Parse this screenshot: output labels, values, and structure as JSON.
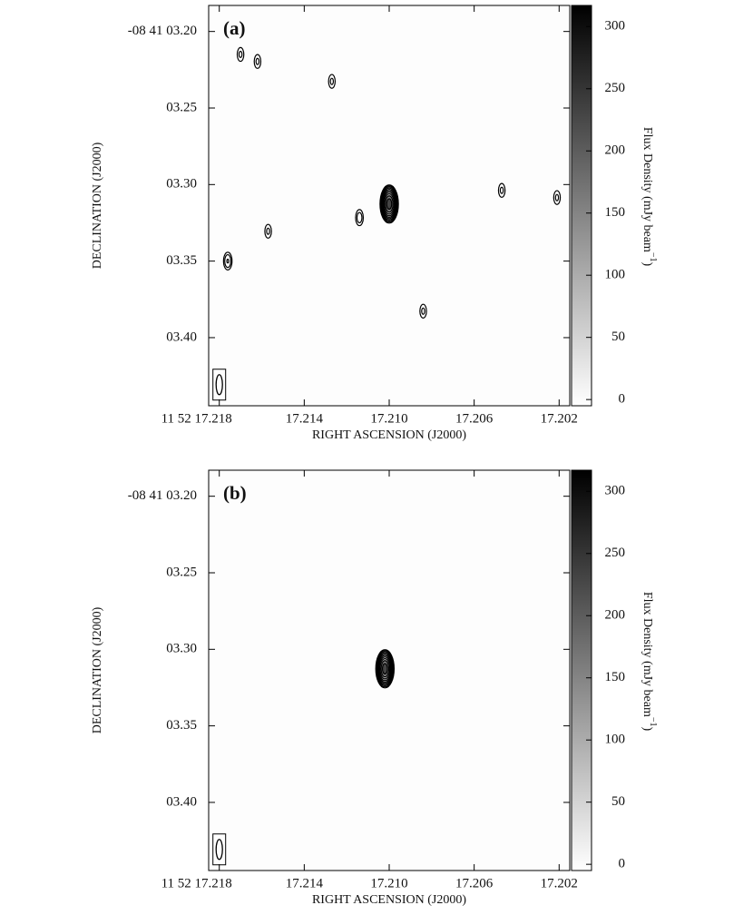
{
  "chart_data": [
    {
      "type": "contour",
      "panel_label": "(a)",
      "xlabel": "RIGHT ASCENSION (J2000)",
      "ylabel": "DECLINATION (J2000)",
      "xlim": [
        17.2185,
        17.2015
      ],
      "ylim": [
        3.183,
        3.4445
      ],
      "xticks": [
        {
          "value": 17.218,
          "label": "11 52 17.218"
        },
        17.214,
        {
          "value": 17.21,
          "label": "17.210"
        },
        17.206,
        17.202
      ],
      "yticks": [
        {
          "value": 3.2,
          "label": "-08 41 03.20"
        },
        {
          "value": 3.25,
          "label": "03.25"
        },
        {
          "value": 3.3,
          "label": "03.30"
        },
        {
          "value": 3.35,
          "label": "03.35"
        },
        {
          "value": 3.4,
          "label": "03.40"
        }
      ],
      "colorbar": {
        "label": "Flux Density (mJy beam",
        "label_exp": "−1",
        "label_end": ")",
        "clim": [
          -5,
          317
        ],
        "ticks": [
          0,
          50,
          100,
          150,
          200,
          250,
          300
        ]
      },
      "sources": [
        {
          "x": 17.21,
          "y": 3.3127,
          "peak": 310
        },
        {
          "x": 17.217,
          "y": 3.215,
          "peak": 10
        },
        {
          "x": 17.2162,
          "y": 3.2196,
          "peak": 10
        },
        {
          "x": 17.2127,
          "y": 3.2326,
          "peak": 10
        },
        {
          "x": 17.2114,
          "y": 3.3216,
          "peak": 12
        },
        {
          "x": 17.2157,
          "y": 3.3305,
          "peak": 10
        },
        {
          "x": 17.2176,
          "y": 3.35,
          "peak": 14
        },
        {
          "x": 17.2084,
          "y": 3.3827,
          "peak": 10
        },
        {
          "x": 17.2047,
          "y": 3.3038,
          "peak": 10
        },
        {
          "x": 17.2021,
          "y": 3.3085,
          "peak": 10
        }
      ],
      "beam": {
        "x": 17.218,
        "y": 3.4307
      }
    },
    {
      "type": "contour",
      "panel_label": "(b)",
      "xlabel": "RIGHT ASCENSION (J2000)",
      "ylabel": "DECLINATION (J2000)",
      "xlim": [
        17.2185,
        17.2015
      ],
      "ylim": [
        3.183,
        3.4445
      ],
      "xticks": [
        {
          "value": 17.218,
          "label": "11 52 17.218"
        },
        17.214,
        {
          "value": 17.21,
          "label": "17.210"
        },
        17.206,
        17.202
      ],
      "yticks": [
        {
          "value": 3.2,
          "label": "-08 41 03.20"
        },
        {
          "value": 3.25,
          "label": "03.25"
        },
        {
          "value": 3.3,
          "label": "03.30"
        },
        {
          "value": 3.35,
          "label": "03.35"
        },
        {
          "value": 3.4,
          "label": "03.40"
        }
      ],
      "colorbar": {
        "label": "Flux Density (mJy beam",
        "label_exp": "−1",
        "label_end": ")",
        "clim": [
          -5,
          317
        ],
        "ticks": [
          0,
          50,
          100,
          150,
          200,
          250,
          300
        ]
      },
      "sources": [
        {
          "x": 17.2102,
          "y": 3.3127,
          "peak": 310
        }
      ],
      "beam": {
        "x": 17.218,
        "y": 3.4307
      }
    }
  ]
}
